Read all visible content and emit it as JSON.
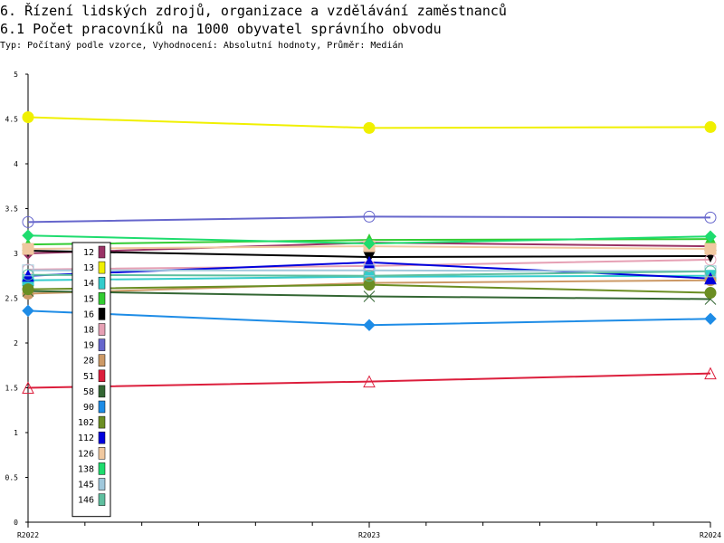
{
  "header": {
    "title": "6. Řízení lidských zdrojů, organizace a vzdělávání zaměstnanců",
    "subtitle": "6.1 Počet pracovníků na 1000 obyvatel správního obvodu",
    "info": "Typ: Počítaný podle vzorce, Vyhodnocení: Absolutní hodnoty, Průměr: Medián"
  },
  "chart_data": {
    "type": "line",
    "x": [
      "R2022",
      "R2023",
      "R2024"
    ],
    "ylim": [
      0,
      5
    ],
    "yticks": [
      "0",
      "0.5",
      "1",
      "1.5",
      "2",
      "2.5",
      "3",
      "3.5",
      "4",
      "4.5",
      "5"
    ],
    "grid": false,
    "legend_position": "left-inside",
    "series": [
      {
        "name": "12",
        "color": "#993366",
        "values": [
          3.0,
          3.12,
          3.08
        ]
      },
      {
        "name": "13",
        "color": "#f0f000",
        "values": [
          4.52,
          4.4,
          4.41
        ]
      },
      {
        "name": "14",
        "color": "#33cccc",
        "values": [
          2.7,
          2.74,
          2.75
        ]
      },
      {
        "name": "15",
        "color": "#33cc33",
        "values": [
          3.1,
          3.15,
          3.16
        ]
      },
      {
        "name": "16",
        "color": "#000000",
        "values": [
          3.03,
          2.96,
          2.97
        ]
      },
      {
        "name": "18",
        "color": "#e6a0b4",
        "values": [
          2.82,
          2.86,
          2.93
        ]
      },
      {
        "name": "19",
        "color": "#6666cc",
        "values": [
          3.35,
          3.41,
          3.4
        ]
      },
      {
        "name": "28",
        "color": "#cc9966",
        "values": [
          2.55,
          2.67,
          2.7
        ]
      },
      {
        "name": "51",
        "color": "#dc1e3c",
        "values": [
          1.5,
          1.57,
          1.66
        ]
      },
      {
        "name": "58",
        "color": "#336633",
        "values": [
          2.58,
          2.52,
          2.49
        ]
      },
      {
        "name": "90",
        "color": "#1e8ce6",
        "values": [
          2.36,
          2.2,
          2.27
        ]
      },
      {
        "name": "102",
        "color": "#6b8e23",
        "values": [
          2.6,
          2.65,
          2.56
        ]
      },
      {
        "name": "112",
        "color": "#0000dd",
        "values": [
          2.75,
          2.9,
          2.72
        ]
      },
      {
        "name": "126",
        "color": "#f0c8a0",
        "values": [
          3.05,
          3.08,
          3.05
        ]
      },
      {
        "name": "138",
        "color": "#1edc6e",
        "values": [
          3.2,
          3.11,
          3.19
        ]
      },
      {
        "name": "145",
        "color": "#a0c8dc",
        "values": [
          2.81,
          2.81,
          2.8
        ]
      },
      {
        "name": "146",
        "color": "#5fbf9f",
        "values": [
          2.76,
          2.75,
          2.8
        ]
      }
    ]
  }
}
